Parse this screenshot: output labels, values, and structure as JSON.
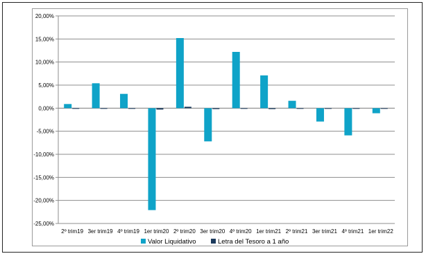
{
  "chart_data": {
    "type": "bar",
    "categories": [
      "2º trim19",
      "3er trim19",
      "4º trim19",
      "1er trim20",
      "2º trim20",
      "3er trim20",
      "4º trim20",
      "1er trim21",
      "2º trim21",
      "3er trim21",
      "4º trim21",
      "1er trim22"
    ],
    "series": [
      {
        "name": "Valor Liquidativo",
        "color": "#0fa3c8",
        "values": [
          0.9,
          5.4,
          3.1,
          -22.1,
          15.2,
          -7.2,
          12.2,
          7.1,
          1.6,
          -2.9,
          -5.9,
          -1.1
        ]
      },
      {
        "name": "Letra del Tesoro a 1 año",
        "color": "#1b3a5c",
        "values": [
          -0.1,
          -0.1,
          -0.1,
          -0.3,
          0.3,
          -0.2,
          -0.1,
          -0.2,
          -0.1,
          -0.1,
          -0.1,
          -0.1
        ]
      }
    ],
    "y_ticks": [
      "20,00%",
      "15,00%",
      "10,00%",
      "5,00%",
      "0,00%",
      "-5,00%",
      "-10,00%",
      "-15,00%",
      "-20,00%",
      "-25,00%"
    ],
    "ylim": [
      -25,
      20
    ],
    "grid": true,
    "legend_position": "bottom"
  }
}
